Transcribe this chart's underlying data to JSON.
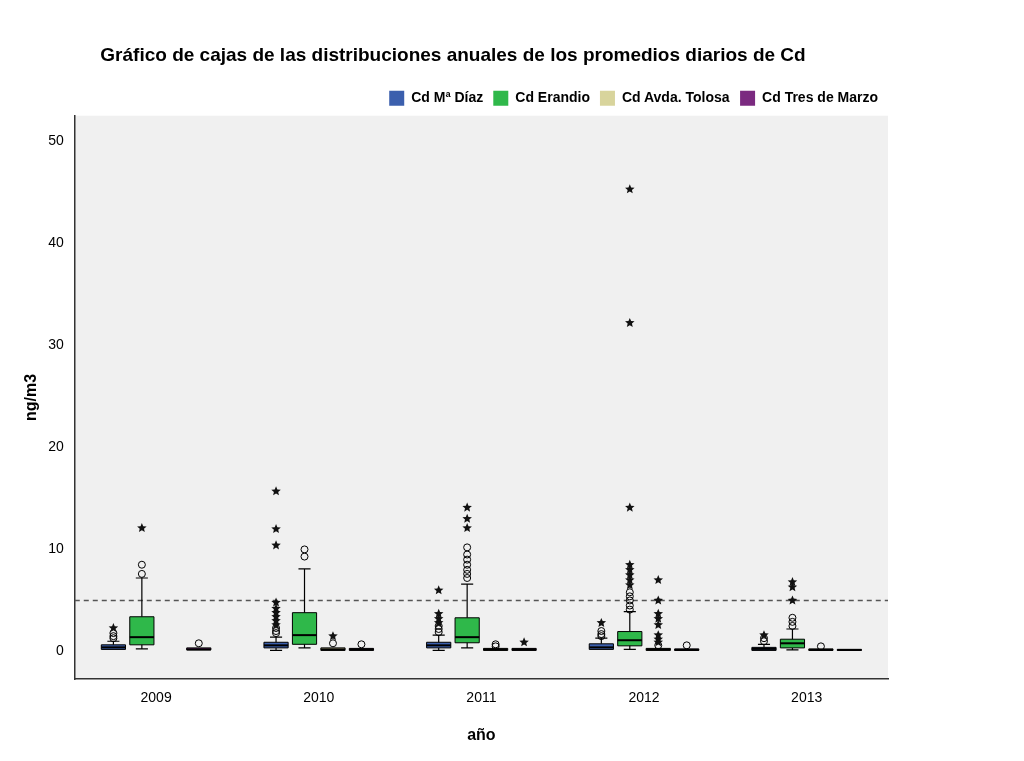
{
  "chart_data": {
    "type": "box",
    "title": "Gráfico de cajas de las distribuciones anuales de los promedios diarios de Cd",
    "xlabel": "año",
    "ylabel": "ng/m3",
    "categories": [
      "2009",
      "2010",
      "2011",
      "2012",
      "2013"
    ],
    "ylim": [
      -2.7,
      52.5
    ],
    "yticks": [
      0,
      10,
      20,
      30,
      40,
      50
    ],
    "grid": false,
    "legend": "top right",
    "ref_lines": [
      {
        "axis": "y",
        "value": 5,
        "line_style": "dashed",
        "color": "#555555"
      }
    ],
    "series": [
      {
        "name": "Cd Mª Díaz",
        "color": "#3b5fad",
        "boxes": [
          {
            "low": 0.05,
            "q1": 0.2,
            "median": 0.4,
            "q3": 0.65,
            "high": 1.0,
            "outliers": [
              1.3,
              1.5,
              1.8,
              2.3
            ]
          },
          {
            "low": 0.1,
            "q1": 0.35,
            "median": 0.6,
            "q3": 0.9,
            "high": 1.4,
            "outliers": [
              1.8,
              2.0,
              2.3,
              2.6,
              3.0,
              3.4,
              3.8,
              4.2,
              4.8,
              10.4,
              12.0,
              15.7
            ]
          },
          {
            "low": 0.1,
            "q1": 0.35,
            "median": 0.6,
            "q3": 0.9,
            "high": 1.6,
            "outliers": [
              1.9,
              2.2,
              2.5,
              2.8,
              3.2,
              3.7,
              6.0
            ]
          },
          {
            "low": 0.1,
            "q1": 0.2,
            "median": 0.4,
            "q3": 0.75,
            "high": 1.3,
            "outliers": [
              1.5,
              1.7,
              2.0,
              2.8
            ]
          },
          {
            "low": 0.05,
            "q1": 0.1,
            "median": 0.25,
            "q3": 0.4,
            "high": 0.7,
            "outliers": [
              1.0,
              1.3,
              1.6
            ]
          }
        ]
      },
      {
        "name": "Cd Erandio",
        "color": "#2fb84a",
        "boxes": [
          {
            "low": 0.25,
            "q1": 0.65,
            "median": 1.4,
            "q3": 3.4,
            "high": 7.2,
            "outliers": [
              7.6,
              8.5,
              12.1
            ]
          },
          {
            "low": 0.35,
            "q1": 0.7,
            "median": 1.6,
            "q3": 3.8,
            "high": 8.1,
            "outliers": [
              9.3,
              10.0
            ]
          },
          {
            "low": 0.35,
            "q1": 0.85,
            "median": 1.4,
            "q3": 3.3,
            "high": 6.6,
            "outliers": [
              7.2,
              7.6,
              8.0,
              8.5,
              9.0,
              9.5,
              10.2,
              12.1,
              13.0,
              14.1
            ]
          },
          {
            "low": 0.2,
            "q1": 0.55,
            "median": 1.1,
            "q3": 1.95,
            "high": 3.9,
            "outliers": [
              4.1,
              4.5,
              5.0,
              5.4,
              5.8,
              6.5,
              7.0,
              7.5,
              8.0,
              8.5,
              14.1,
              32.2,
              45.3
            ]
          },
          {
            "low": 0.15,
            "q1": 0.35,
            "median": 0.8,
            "q3": 1.2,
            "high": 2.2,
            "outliers": [
              2.5,
              2.9,
              3.3,
              5.0,
              6.3,
              6.8
            ]
          }
        ]
      },
      {
        "name": "Cd Avda. Tolosa",
        "color": "#d8d49c",
        "boxes": [
          null,
          {
            "low": 0.05,
            "q1": 0.1,
            "median": 0.2,
            "q3": 0.35,
            "high": 0.5,
            "outliers": [
              0.8,
              1.5
            ]
          },
          {
            "low": 0.05,
            "q1": 0.1,
            "median": 0.2,
            "q3": 0.3,
            "high": 0.4,
            "outliers": [
              0.5,
              0.7
            ]
          },
          {
            "low": 0.05,
            "q1": 0.1,
            "median": 0.2,
            "q3": 0.3,
            "high": 0.45,
            "outliers": [
              0.6,
              0.9,
              1.2,
              1.6,
              2.6,
              3.2,
              3.7,
              5.0,
              7.0
            ]
          },
          {
            "low": 0.05,
            "q1": 0.1,
            "median": 0.15,
            "q3": 0.25,
            "high": 0.3,
            "outliers": [
              0.5
            ]
          }
        ]
      },
      {
        "name": "Cd Tres de Marzo",
        "color": "#7b2a80",
        "boxes": [
          {
            "low": 0.05,
            "q1": 0.15,
            "median": 0.2,
            "q3": 0.35,
            "high": 0.4,
            "outliers": [
              0.8
            ]
          },
          {
            "low": 0.05,
            "q1": 0.1,
            "median": 0.2,
            "q3": 0.3,
            "high": 0.4,
            "outliers": [
              0.7
            ]
          },
          {
            "low": 0.05,
            "q1": 0.1,
            "median": 0.2,
            "q3": 0.3,
            "high": 0.4,
            "outliers": [
              0.9
            ]
          },
          {
            "low": 0.05,
            "q1": 0.1,
            "median": 0.15,
            "q3": 0.25,
            "high": 0.3,
            "outliers": [
              0.6
            ]
          },
          {
            "low": 0.05,
            "q1": 0.1,
            "median": 0.15,
            "q3": 0.2,
            "high": 0.25
          }
        ]
      }
    ]
  }
}
